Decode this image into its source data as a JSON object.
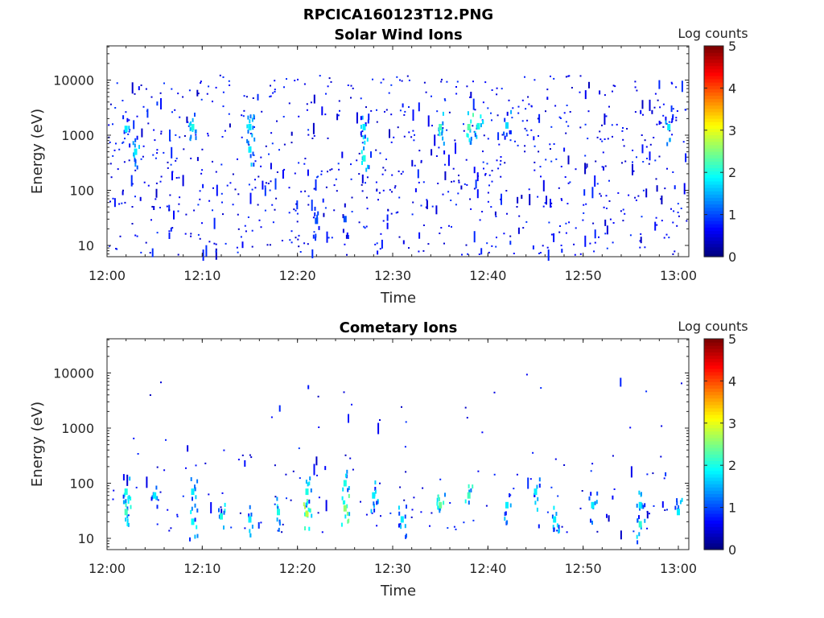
{
  "figure_title": "RPCICA160123T12.PNG",
  "colormap": "jet",
  "chart_data": [
    {
      "type": "heatmap",
      "title": "Solar Wind Ions",
      "xlabel": "Time",
      "ylabel": "Energy (eV)",
      "x_ticks": [
        "12:00",
        "12:10",
        "12:20",
        "12:30",
        "12:40",
        "12:50",
        "13:00"
      ],
      "y_scale": "log",
      "y_ticks": [
        "10",
        "100",
        "1000",
        "10000"
      ],
      "colorbar": {
        "label": "Log counts",
        "range": [
          0,
          5
        ],
        "ticks": [
          "0",
          "1",
          "2",
          "3",
          "4",
          "5"
        ]
      },
      "data_description_points": [
        {
          "t": "12:02",
          "energy_ev": 1300,
          "log_counts": 1.8
        },
        {
          "t": "12:03",
          "energy_ev": 500,
          "log_counts": 1.8
        },
        {
          "t": "12:09",
          "energy_ev": 1400,
          "log_counts": 2.0
        },
        {
          "t": "12:15",
          "energy_ev": 1400,
          "log_counts": 1.8
        },
        {
          "t": "12:15",
          "energy_ev": 550,
          "log_counts": 1.8
        },
        {
          "t": "12:22",
          "energy_ev": 28,
          "log_counts": 1.0
        },
        {
          "t": "12:25",
          "energy_ev": 30,
          "log_counts": 1.0
        },
        {
          "t": "12:27",
          "energy_ev": 1400,
          "log_counts": 1.8
        },
        {
          "t": "12:27",
          "energy_ev": 380,
          "log_counts": 2.0
        },
        {
          "t": "12:35",
          "energy_ev": 1400,
          "log_counts": 2.2
        },
        {
          "t": "12:38",
          "energy_ev": 1400,
          "log_counts": 2.3
        },
        {
          "t": "12:39",
          "energy_ev": 1450,
          "log_counts": 2.0
        },
        {
          "t": "12:42",
          "energy_ev": 1500,
          "log_counts": 1.7
        },
        {
          "t": "12:59",
          "energy_ev": 1400,
          "log_counts": 1.8
        }
      ]
    },
    {
      "type": "heatmap",
      "title": "Cometary Ions",
      "xlabel": "Time",
      "ylabel": "Energy (eV)",
      "x_ticks": [
        "12:00",
        "12:10",
        "12:20",
        "12:30",
        "12:40",
        "12:50",
        "13:00"
      ],
      "y_scale": "log",
      "y_ticks": [
        "10",
        "100",
        "1000",
        "10000"
      ],
      "colorbar": {
        "label": "Log counts",
        "range": [
          0,
          5
        ],
        "ticks": [
          "0",
          "1",
          "2",
          "3",
          "4",
          "5"
        ]
      },
      "data_description_points": [
        {
          "t": "12:02",
          "energy_ev": 70,
          "log_counts": 2.0
        },
        {
          "t": "12:02",
          "energy_ev": 30,
          "log_counts": 2.2
        },
        {
          "t": "12:05",
          "energy_ev": 60,
          "log_counts": 1.8
        },
        {
          "t": "12:09",
          "energy_ev": 70,
          "log_counts": 1.8
        },
        {
          "t": "12:09",
          "energy_ev": 20,
          "log_counts": 1.9
        },
        {
          "t": "12:12",
          "energy_ev": 25,
          "log_counts": 2.0
        },
        {
          "t": "12:15",
          "energy_ev": 22,
          "log_counts": 1.8
        },
        {
          "t": "12:18",
          "energy_ev": 30,
          "log_counts": 2.0
        },
        {
          "t": "12:21",
          "energy_ev": 28,
          "log_counts": 2.8
        },
        {
          "t": "12:21",
          "energy_ev": 70,
          "log_counts": 2.0
        },
        {
          "t": "12:25",
          "energy_ev": 35,
          "log_counts": 2.6
        },
        {
          "t": "12:25",
          "energy_ev": 100,
          "log_counts": 2.0
        },
        {
          "t": "12:28",
          "energy_ev": 60,
          "log_counts": 1.8
        },
        {
          "t": "12:31",
          "energy_ev": 22,
          "log_counts": 1.8
        },
        {
          "t": "12:35",
          "energy_ev": 40,
          "log_counts": 2.4
        },
        {
          "t": "12:38",
          "energy_ev": 60,
          "log_counts": 2.2
        },
        {
          "t": "12:42",
          "energy_ev": 40,
          "log_counts": 1.8
        },
        {
          "t": "12:45",
          "energy_ev": 70,
          "log_counts": 1.8
        },
        {
          "t": "12:47",
          "energy_ev": 22,
          "log_counts": 1.8
        },
        {
          "t": "12:51",
          "energy_ev": 40,
          "log_counts": 1.8
        },
        {
          "t": "12:56",
          "energy_ev": 40,
          "log_counts": 1.8
        },
        {
          "t": "12:56",
          "energy_ev": 18,
          "log_counts": 2.1
        },
        {
          "t": "13:00",
          "energy_ev": 30,
          "log_counts": 1.8
        }
      ]
    }
  ]
}
